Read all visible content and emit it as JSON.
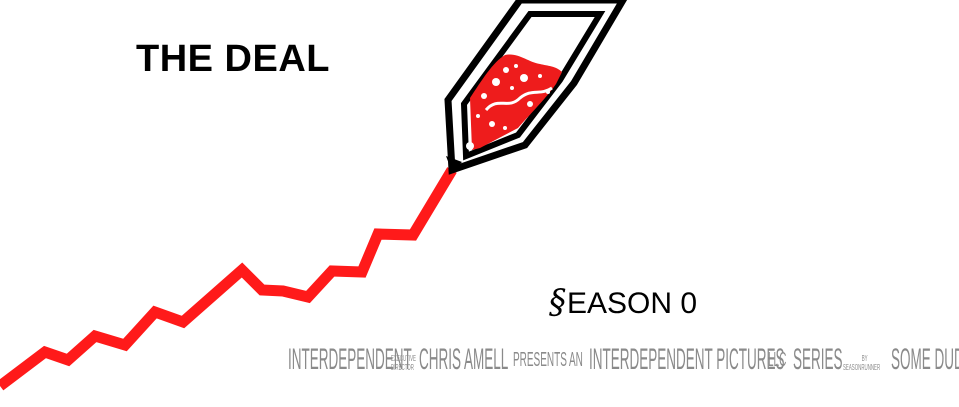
{
  "title": "THE DEAL",
  "season": {
    "symbol": "§",
    "text": "EASON 0"
  },
  "credits": {
    "company": "INTERDEPENDENT",
    "role_top": "EXECUTIVE",
    "role_bottom": "DIRECTOR",
    "director": "CHRIS AMELL",
    "presents": "PRESENTS",
    "an": "AN",
    "studio": "INTERDEPENDENT PICTURES",
    "llc": "LLC",
    "series": "SERIES",
    "showrunner_label": "SEASONRUNNER",
    "by": "BY",
    "showrunner": "SOME DUDE"
  },
  "colors": {
    "line": "#ff1a1a",
    "pen_outline": "#000000",
    "nib_fill": "#ee1c1c",
    "credits": "#8a8a8a",
    "background": "#ffffff"
  },
  "icons": {
    "graph": "rising-line-graph",
    "pen": "fountain-pen-icon"
  }
}
